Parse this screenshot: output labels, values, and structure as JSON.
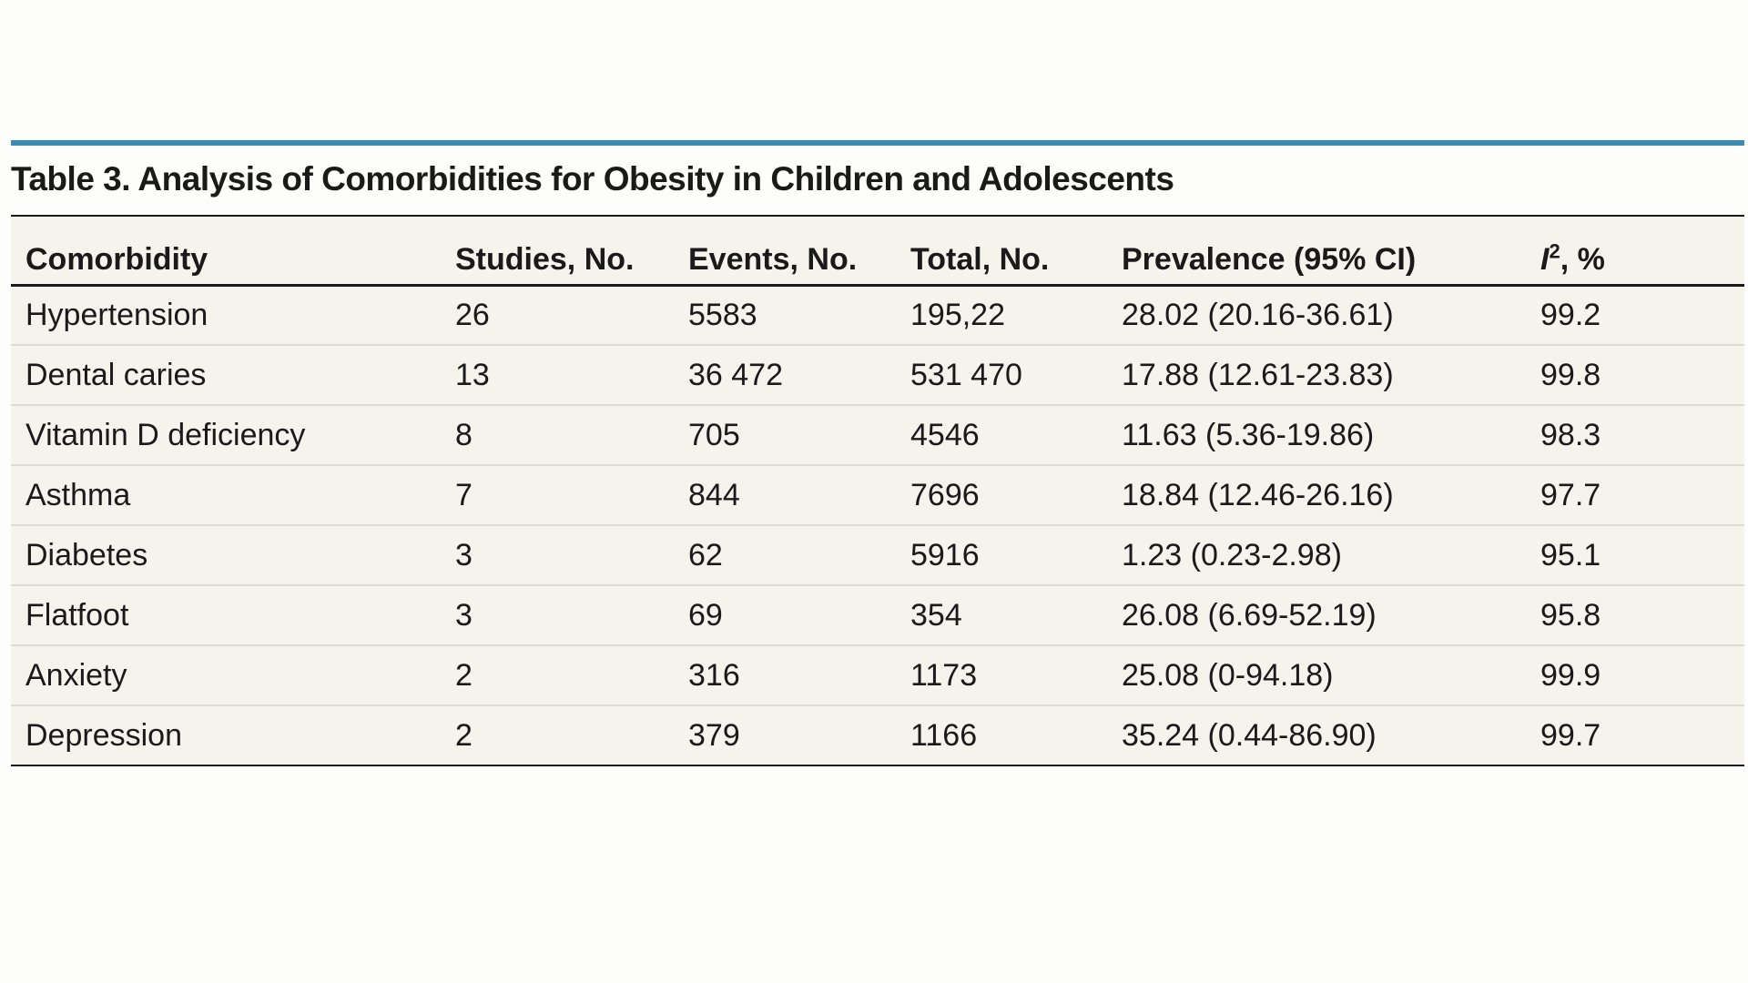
{
  "table": {
    "caption": "Table 3. Analysis of Comorbidities for Obesity in Children and Adolescents",
    "headers": {
      "comorbidity": "Comorbidity",
      "studies": "Studies, No.",
      "events": "Events, No.",
      "total": "Total, No.",
      "prevalence": "Prevalence (95% CI)",
      "i2_symbol": "I",
      "i2_superscript": "2",
      "i2_suffix": ", %"
    },
    "rows": [
      {
        "comorbidity": "Hypertension",
        "studies": "26",
        "events": "5583",
        "total": "195,22",
        "prevalence": "28.02 (20.16-36.61)",
        "i2": "99.2"
      },
      {
        "comorbidity": "Dental caries",
        "studies": "13",
        "events": "36 472",
        "total": "531 470",
        "prevalence": "17.88 (12.61-23.83)",
        "i2": "99.8"
      },
      {
        "comorbidity": "Vitamin D deficiency",
        "studies": "8",
        "events": "705",
        "total": "4546",
        "prevalence": "11.63 (5.36-19.86)",
        "i2": "98.3"
      },
      {
        "comorbidity": "Asthma",
        "studies": "7",
        "events": "844",
        "total": "7696",
        "prevalence": "18.84 (12.46-26.16)",
        "i2": "97.7"
      },
      {
        "comorbidity": "Diabetes",
        "studies": "3",
        "events": "62",
        "total": "5916",
        "prevalence": "1.23 (0.23-2.98)",
        "i2": "95.1"
      },
      {
        "comorbidity": "Flatfoot",
        "studies": "3",
        "events": "69",
        "total": "354",
        "prevalence": "26.08 (6.69-52.19)",
        "i2": "95.8"
      },
      {
        "comorbidity": "Anxiety",
        "studies": "2",
        "events": "316",
        "total": "1173",
        "prevalence": "25.08 (0-94.18)",
        "i2": "99.9"
      },
      {
        "comorbidity": "Depression",
        "studies": "2",
        "events": "379",
        "total": "1166",
        "prevalence": "35.24 (0.44-86.90)",
        "i2": "99.7"
      }
    ]
  },
  "colors": {
    "accent_rule": "#3a8db0",
    "table_background": "#f4f3ec",
    "row_divider": "#dcdad2"
  }
}
